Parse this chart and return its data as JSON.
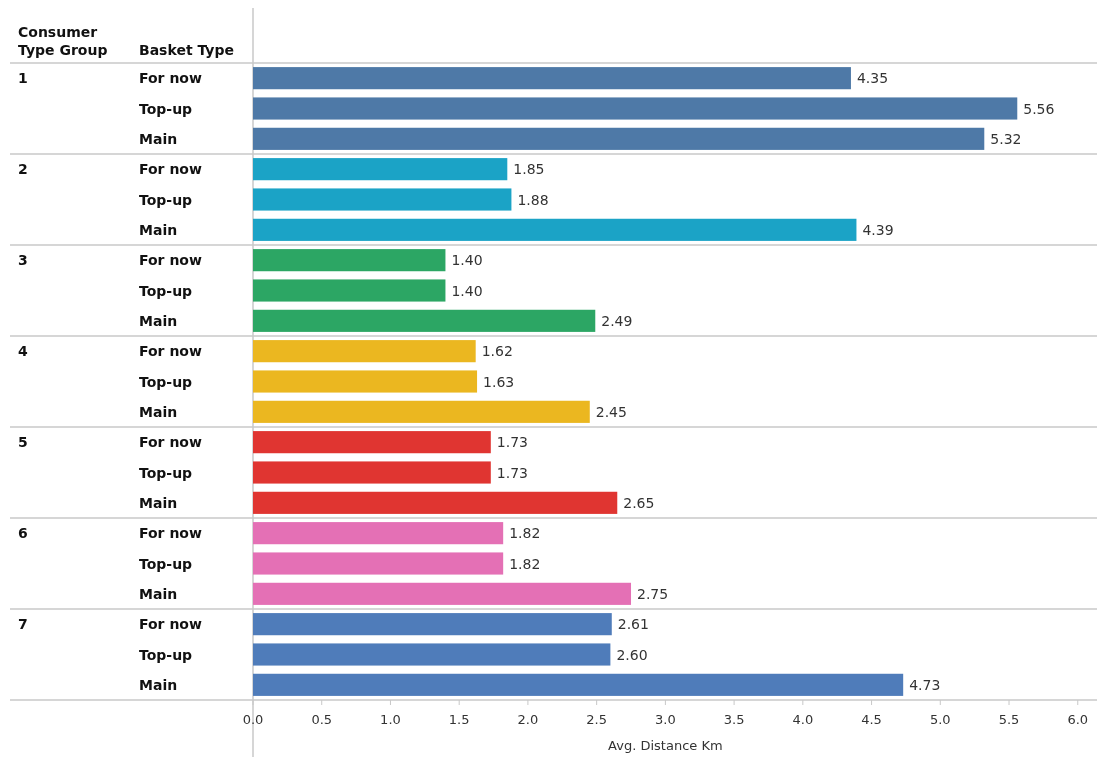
{
  "chart_data": {
    "type": "bar",
    "orientation": "horizontal",
    "xlabel": "Avg. Distance Km",
    "ylabel": "Basket Type",
    "y2label": "Consumer Type Group",
    "categories": [
      "For now",
      "Top-up",
      "Main",
      "For now",
      "Top-up",
      "Main",
      "For now",
      "Top-up",
      "Main",
      "For now",
      "Top-up",
      "Main",
      "For now",
      "Top-up",
      "Main",
      "For now",
      "Top-up",
      "Main",
      "For now",
      "Top-up",
      "Main"
    ],
    "y2_categories": [
      "1",
      null,
      null,
      "2",
      null,
      null,
      "3",
      null,
      null,
      "4",
      null,
      null,
      "5",
      null,
      null,
      "6",
      null,
      null,
      "7",
      null,
      null
    ],
    "values": [
      4.35,
      5.56,
      5.32,
      1.85,
      1.88,
      4.39,
      1.4,
      1.4,
      2.49,
      1.62,
      1.63,
      2.45,
      1.73,
      1.73,
      2.65,
      1.82,
      1.82,
      2.75,
      2.61,
      2.6,
      4.73
    ],
    "value_labels": [
      "4.35",
      "5.56",
      "5.32",
      "1.85",
      "1.88",
      "4.39",
      "1.40",
      "1.40",
      "2.49",
      "1.62",
      "1.63",
      "2.45",
      "1.73",
      "1.73",
      "2.65",
      "1.82",
      "1.82",
      "2.75",
      "2.61",
      "2.60",
      "4.73"
    ],
    "colors": [
      "#4e79a7",
      "#4e79a7",
      "#4e79a7",
      "#1ba3c6",
      "#1ba3c6",
      "#1ba3c6",
      "#2ca664",
      "#2ca664",
      "#2ca664",
      "#ebb720",
      "#ebb720",
      "#ebb720",
      "#e03531",
      "#e03531",
      "#e03531",
      "#e470b5",
      "#e470b5",
      "#e470b5",
      "#4f7cba",
      "#4f7cba",
      "#4f7cba"
    ],
    "xlim": [
      0,
      6.14
    ],
    "xticks": [
      {
        "value": 0,
        "label": "0.0"
      },
      0.5,
      {
        "value": 1,
        "label": "1.0"
      },
      1.5,
      {
        "value": 2,
        "label": "2.0"
      },
      2.5,
      {
        "value": 3,
        "label": "3.0"
      },
      3.5,
      {
        "value": 4,
        "label": "4.0"
      },
      4.5,
      {
        "value": 5,
        "label": "5.0"
      },
      5.5,
      {
        "value": 6,
        "label": "6.0"
      }
    ]
  }
}
